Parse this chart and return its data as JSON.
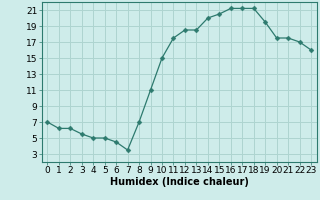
{
  "x": [
    0,
    1,
    2,
    3,
    4,
    5,
    6,
    7,
    8,
    9,
    10,
    11,
    12,
    13,
    14,
    15,
    16,
    17,
    18,
    19,
    20,
    21,
    22,
    23
  ],
  "y": [
    7.0,
    6.2,
    6.2,
    5.5,
    5.0,
    5.0,
    4.5,
    3.5,
    7.0,
    11.0,
    15.0,
    17.5,
    18.5,
    18.5,
    20.0,
    20.5,
    21.2,
    21.2,
    21.2,
    19.5,
    17.5,
    17.5,
    17.0,
    16.0
  ],
  "line_color": "#2d7a6e",
  "marker": "D",
  "marker_size": 2.5,
  "bg_color": "#ceecea",
  "grid_color": "#aed4d0",
  "xlabel": "Humidex (Indice chaleur)",
  "xlabel_fontsize": 7,
  "tick_fontsize": 6.5,
  "xlim": [
    -0.5,
    23.5
  ],
  "ylim": [
    2,
    22
  ],
  "yticks": [
    3,
    5,
    7,
    9,
    11,
    13,
    15,
    17,
    19,
    21
  ],
  "xticks": [
    0,
    1,
    2,
    3,
    4,
    5,
    6,
    7,
    8,
    9,
    10,
    11,
    12,
    13,
    14,
    15,
    16,
    17,
    18,
    19,
    20,
    21,
    22,
    23
  ],
  "xtick_labels": [
    "0",
    "1",
    "2",
    "3",
    "4",
    "5",
    "6",
    "7",
    "8",
    "9",
    "10",
    "11",
    "12",
    "13",
    "14",
    "15",
    "16",
    "17",
    "18",
    "19",
    "20",
    "21",
    "22",
    "23"
  ]
}
